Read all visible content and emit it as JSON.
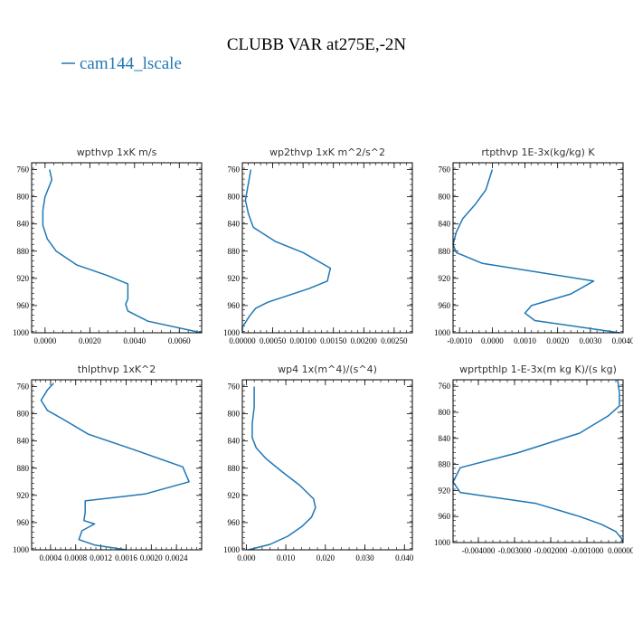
{
  "figure": {
    "title": "CLUBB VAR at275E,-2N",
    "legend_label": "cam144_lscale",
    "legend_color": "#1f77b4"
  },
  "chart_data": [
    {
      "type": "line",
      "title": "wpthvp   1xK m/s",
      "xlabel": "",
      "ylabel": "",
      "xlim": [
        -0.0006,
        0.007
      ],
      "ylim": [
        1000,
        750
      ],
      "xticks": [
        0,
        0.002,
        0.004,
        0.006
      ],
      "xtick_labels": [
        "0.0000",
        "0.0020",
        "0.0040",
        "0.0060"
      ],
      "yticks": [
        760,
        800,
        840,
        880,
        920,
        960,
        1000
      ],
      "ytick_labels": [
        "760",
        "800",
        "840",
        "880",
        "920",
        "960",
        "1000"
      ],
      "series": [
        {
          "color": "#1f77b4",
          "x": [
            0.0002,
            0.0003,
            0.0,
            -0.0001,
            -0.0001,
            0.0001,
            0.0005,
            0.0014,
            0.0028,
            0.0037,
            0.0037,
            0.0036,
            0.0037,
            0.0046,
            0.007
          ],
          "y": [
            760,
            775,
            800,
            820,
            842,
            862,
            880,
            900,
            916,
            928,
            950,
            958,
            968,
            983,
            1000
          ]
        }
      ]
    },
    {
      "type": "line",
      "title": "wp2thvp   1xK m^2/s^2",
      "xlabel": "",
      "ylabel": "",
      "xlim": [
        0,
        0.0028
      ],
      "ylim": [
        1000,
        750
      ],
      "xticks": [
        0,
        0.0005,
        0.001,
        0.0015,
        0.002,
        0.0025
      ],
      "xtick_labels": [
        "0.00000",
        "0.00050",
        "0.00100",
        "0.00150",
        "0.00200",
        "0.00250"
      ],
      "yticks": [
        760,
        800,
        840,
        880,
        920,
        960,
        1000
      ],
      "ytick_labels": [
        "760",
        "800",
        "840",
        "880",
        "920",
        "960",
        "1000"
      ],
      "series": [
        {
          "color": "#1f77b4",
          "x": [
            0.00014,
            0.0001,
            5e-05,
            0.0001,
            0.00018,
            0.00055,
            0.001,
            0.00145,
            0.0014,
            0.0011,
            0.00042,
            0.00022,
            0.00012,
            0.0,
            0.0
          ],
          "y": [
            760,
            780,
            805,
            825,
            845,
            866,
            882,
            905,
            924,
            935,
            955,
            964,
            975,
            992,
            1000
          ]
        }
      ]
    },
    {
      "type": "line",
      "title": "rtpthvp   1E-3x(kg/kg) K",
      "xlabel": "",
      "ylabel": "",
      "xlim": [
        -0.0012,
        0.004
      ],
      "ylim": [
        1000,
        750
      ],
      "xticks": [
        -0.001,
        0.0,
        0.001,
        0.002,
        0.003,
        0.004
      ],
      "xtick_labels": [
        "-0.0010",
        "0.0000",
        "0.0010",
        "0.0020",
        "0.0030",
        "0.0040"
      ],
      "yticks": [
        760,
        800,
        840,
        880,
        920,
        960,
        1000
      ],
      "ytick_labels": [
        "760",
        "800",
        "840",
        "880",
        "920",
        "960",
        "1000"
      ],
      "series": [
        {
          "color": "#1f77b4",
          "x": [
            0.0,
            -0.0002,
            -0.0005,
            -0.0009,
            -0.0011,
            -0.0012,
            -0.0011,
            -0.0003,
            0.0031,
            0.0024,
            0.0012,
            0.001,
            0.0013,
            0.0039
          ],
          "y": [
            760,
            790,
            810,
            832,
            852,
            870,
            882,
            898,
            924,
            943,
            960,
            971,
            982,
            1000
          ]
        }
      ]
    },
    {
      "type": "line",
      "title": "thlpthvp   1xK^2",
      "xlabel": "",
      "ylabel": "",
      "xlim": [
        0.0001,
        0.0028
      ],
      "ylim": [
        1000,
        750
      ],
      "xticks": [
        0.0004,
        0.0008,
        0.0012,
        0.0016,
        0.002,
        0.0024
      ],
      "xtick_labels": [
        "0.0004",
        "0.0008",
        "0.0012",
        "0.0016",
        "0.0020",
        "0.0024"
      ],
      "yticks": [
        760,
        800,
        840,
        880,
        920,
        960,
        1000
      ],
      "ytick_labels": [
        "760",
        "800",
        "840",
        "880",
        "920",
        "960",
        "1000"
      ],
      "series": [
        {
          "color": "#1f77b4",
          "x": [
            0.00045,
            0.00035,
            0.00025,
            0.00035,
            0.0006,
            0.001,
            0.0017,
            0.0025,
            0.0026,
            0.0019,
            0.00095,
            0.00095,
            0.00093,
            0.0011,
            0.0009,
            0.00085,
            0.0011,
            0.0016
          ],
          "y": [
            755,
            765,
            780,
            795,
            808,
            830,
            852,
            878,
            900,
            918,
            928,
            945,
            957,
            962,
            972,
            985,
            993,
            1000
          ]
        }
      ]
    },
    {
      "type": "line",
      "title": "wp4   1x(m^4)/(s^4)",
      "xlabel": "",
      "ylabel": "",
      "xlim": [
        -0.001,
        0.042
      ],
      "ylim": [
        1000,
        750
      ],
      "xticks": [
        0.0,
        0.01,
        0.02,
        0.03,
        0.04
      ],
      "xtick_labels": [
        "0.000",
        "0.010",
        "0.020",
        "0.030",
        "0.040"
      ],
      "yticks": [
        760,
        800,
        840,
        880,
        920,
        960,
        1000
      ],
      "ytick_labels": [
        "760",
        "800",
        "840",
        "880",
        "920",
        "960",
        "1000"
      ],
      "series": [
        {
          "color": "#1f77b4",
          "x": [
            0.002,
            0.002,
            0.0015,
            0.0015,
            0.0025,
            0.005,
            0.009,
            0.0135,
            0.017,
            0.0175,
            0.0165,
            0.014,
            0.0105,
            0.006,
            0.0005
          ],
          "y": [
            760,
            790,
            815,
            835,
            850,
            866,
            885,
            905,
            925,
            938,
            952,
            966,
            980,
            992,
            1000
          ]
        }
      ]
    },
    {
      "type": "line",
      "title": "wprtpthlp   1-E-3x(m kg K)/(s kg)",
      "xlabel": "",
      "ylabel": "",
      "xlim": [
        -0.0047,
        0.0
      ],
      "ylim": [
        1000,
        750
      ],
      "xticks": [
        -0.004,
        -0.003,
        -0.002,
        -0.001,
        0.0
      ],
      "xtick_labels": [
        "-0.004000",
        "-0.003000",
        "-0.002000",
        "-0.001000",
        "0.000000"
      ],
      "yticks": [
        760,
        800,
        840,
        880,
        920,
        960,
        1000
      ],
      "ytick_labels": [
        "760",
        "800",
        "840",
        "880",
        "920",
        "960",
        "1000"
      ],
      "series": [
        {
          "color": "#1f77b4",
          "x": [
            -0.00015,
            -0.0001,
            -0.0001,
            -0.0004,
            -0.0012,
            -0.0029,
            -0.0045,
            -0.0047,
            -0.0045,
            -0.0024,
            -0.0012,
            -0.0006,
            -0.0002,
            -5e-05,
            0.0
          ],
          "y": [
            750,
            770,
            790,
            805,
            832,
            862,
            885,
            907,
            923,
            940,
            960,
            972,
            983,
            993,
            1000
          ]
        }
      ]
    }
  ]
}
